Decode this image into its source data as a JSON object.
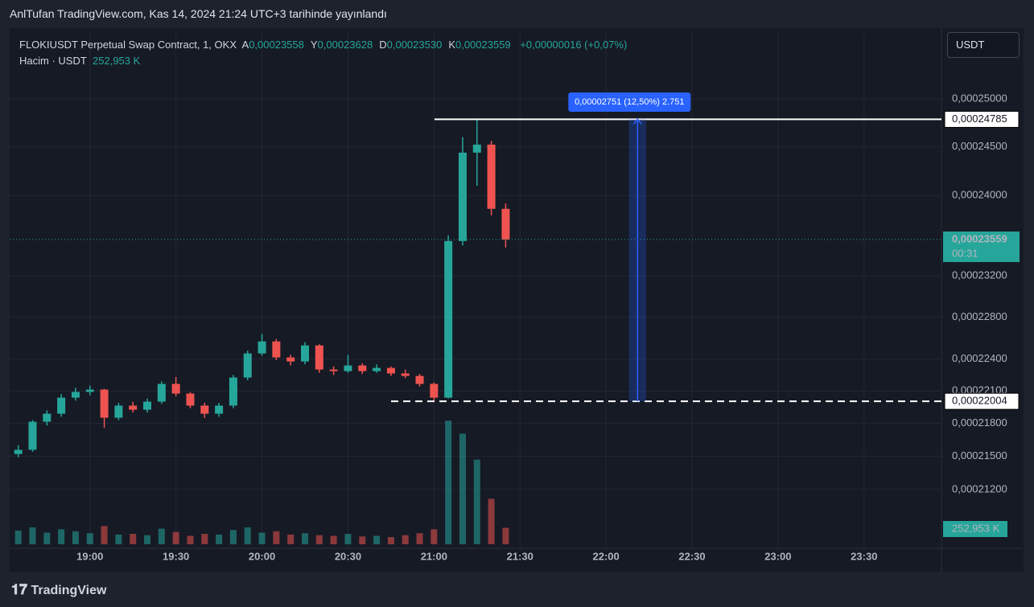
{
  "header": {
    "published": "AnlTufan TradingView.com, Kas 14, 2024 21:24 UTC+3 tarihinde yayınlandı",
    "symbol": "FLOKIUSDT Perpetual Swap Contract, 1, OKX",
    "ohlc": [
      {
        "key": "A",
        "value": "0,00023558"
      },
      {
        "key": "Y",
        "value": "0,00023628"
      },
      {
        "key": "D",
        "value": "0,00023530"
      },
      {
        "key": "K",
        "value": "0,00023559"
      }
    ],
    "change": "+0,00000016 (+0,07%)",
    "volume_title": "Hacim · USDT",
    "volume_value": "252,953 K",
    "currency_button": "USDT",
    "footer": "TradingView"
  },
  "chart_data": {
    "type": "candlestick",
    "log_scale": true,
    "grid": true,
    "x": [
      "18:35",
      "18:40",
      "18:45",
      "18:50",
      "18:55",
      "19:00",
      "19:05",
      "19:10",
      "19:15",
      "19:20",
      "19:25",
      "19:30",
      "19:35",
      "19:40",
      "19:45",
      "19:50",
      "19:55",
      "20:00",
      "20:05",
      "20:10",
      "20:15",
      "20:20",
      "20:25",
      "20:30",
      "20:35",
      "20:40",
      "20:45",
      "20:50",
      "20:55",
      "21:00",
      "21:05",
      "21:10",
      "21:15",
      "21:20",
      "21:25"
    ],
    "open": [
      0.0002152,
      0.00021558,
      0.00021815,
      0.00021889,
      0.00022038,
      0.00022091,
      0.00022113,
      0.00021852,
      0.00021964,
      0.00021926,
      0.00022001,
      0.00022166,
      0.00022076,
      0.00021964,
      0.00021889,
      0.00021964,
      0.00022226,
      0.00022453,
      0.00022567,
      0.00022415,
      0.00022377,
      0.00022529,
      0.00022301,
      0.00022286,
      0.00022339,
      0.00022286,
      0.00022316,
      0.00022264,
      0.00022241,
      0.00022166,
      0.00022038,
      0.00023544,
      0.00024439,
      0.00024522,
      0.00023866
    ],
    "high": [
      0.000216,
      0.0002183,
      0.0002192,
      0.0002207,
      0.0002213,
      0.0002215,
      0.0002212,
      0.0002199,
      0.00022,
      0.0002203,
      0.0002219,
      0.0002223,
      0.0002209,
      0.0002199,
      0.0002199,
      0.0002225,
      0.0002248,
      0.0002264,
      0.0002259,
      0.0002244,
      0.0002256,
      0.0002254,
      0.0002233,
      0.0002244,
      0.0002236,
      0.0002235,
      0.0002233,
      0.000223,
      0.0002226,
      0.0002218,
      0.000236,
      0.000246,
      0.00024785,
      0.0002456,
      0.0002392
    ],
    "low": [
      0.0002149,
      0.0002154,
      0.0002178,
      0.0002186,
      0.0002201,
      0.0002206,
      0.0002176,
      0.0002183,
      0.000219,
      0.000219,
      0.0002198,
      0.0002205,
      0.0002194,
      0.0002185,
      0.0002186,
      0.0002194,
      0.000222,
      0.0002243,
      0.0002239,
      0.0002234,
      0.0002235,
      0.0002227,
      0.0002225,
      0.0002227,
      0.0002226,
      0.0002227,
      0.0002224,
      0.0002222,
      0.0002214,
      0.00022004,
      0.0002203,
      0.000235,
      0.000241,
      0.000238,
      0.0002348
    ],
    "close": [
      0.00021558,
      0.00021815,
      0.00021889,
      0.00022038,
      0.00022091,
      0.00022113,
      0.00021852,
      0.00021964,
      0.00021926,
      0.00022001,
      0.00022166,
      0.00022076,
      0.00021964,
      0.00021889,
      0.00021964,
      0.00022226,
      0.00022453,
      0.00022567,
      0.00022415,
      0.00022377,
      0.00022529,
      0.00022301,
      0.00022286,
      0.00022339,
      0.00022286,
      0.00022316,
      0.00022264,
      0.00022241,
      0.00022166,
      0.00022038,
      0.00023544,
      0.00024439,
      0.00024522,
      0.00023866,
      0.00023559
    ],
    "volume": [
      210000,
      260000,
      180000,
      230000,
      200000,
      170000,
      280000,
      150000,
      160000,
      140000,
      240000,
      190000,
      130000,
      160000,
      150000,
      220000,
      260000,
      180000,
      200000,
      150000,
      170000,
      140000,
      130000,
      160000,
      120000,
      130000,
      110000,
      140000,
      170000,
      230000,
      1900000,
      1700000,
      1300000,
      700000,
      252953
    ],
    "volume_ylim": [
      0,
      2100000
    ],
    "up_color": "#26a69a",
    "down_color": "#ef5350",
    "xlim": [
      "18:32",
      "23:57"
    ],
    "xticks": [
      "19:00",
      "19:30",
      "20:00",
      "20:30",
      "21:00",
      "21:30",
      "22:00",
      "22:30",
      "23:00",
      "23:30"
    ],
    "ylim": [
      0.00020673,
      0.00025714
    ],
    "yticks": [
      {
        "value": 0.00025,
        "label": "0,00025000"
      },
      {
        "value": 0.000245,
        "label": "0,00024500"
      },
      {
        "value": 0.00024,
        "label": "0,00024000"
      },
      {
        "value": 0.000232,
        "label": "0,00023200"
      },
      {
        "value": 0.000228,
        "label": "0,00022800"
      },
      {
        "value": 0.000224,
        "label": "0,00022400"
      },
      {
        "value": 0.000221,
        "label": "0,00022100"
      },
      {
        "value": 0.000218,
        "label": "0,00021800"
      },
      {
        "value": 0.000215,
        "label": "0,00021500"
      },
      {
        "value": 0.000212,
        "label": "0,00021200"
      }
    ],
    "price_lines": [
      {
        "value": 0.00024785,
        "label": "0,00024785"
      },
      {
        "value": 0.00022004,
        "label": "0,00022004"
      }
    ],
    "last_price": {
      "value": 0.00023559,
      "label": "0,00023559",
      "countdown": "00:31"
    },
    "measure": {
      "label": "0,00002751 (12,50%) 2.751",
      "start": "22:08",
      "end": "22:14"
    }
  }
}
